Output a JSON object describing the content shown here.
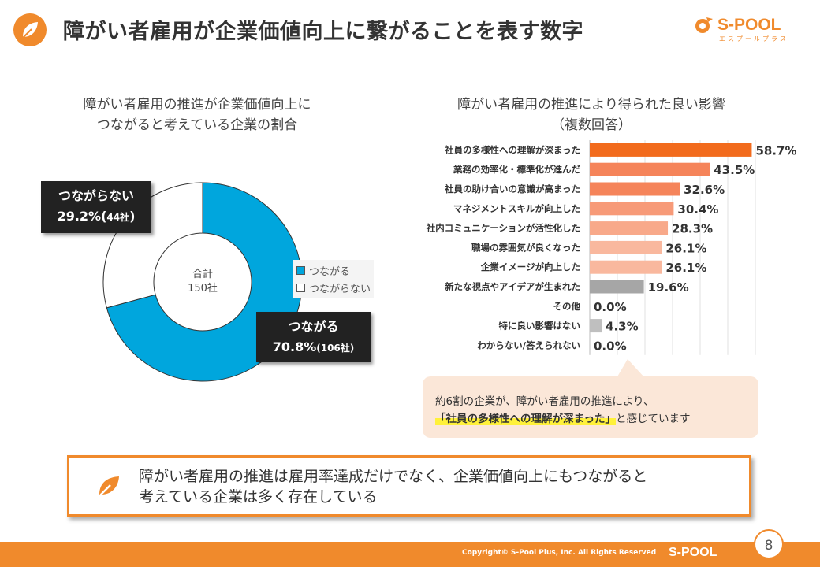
{
  "header": {
    "title": "障がい者雇用が企業価値向上に繋がることを表す数字",
    "logo_text": "S-POOL",
    "logo_sub": "エスプールプラス"
  },
  "left_chart": {
    "title_line1": "障がい者雇用の推進が企業価値向上に",
    "title_line2": "つながると考えている企業の割合",
    "center_label_line1": "合計",
    "center_label_line2": "150社",
    "callout_no": {
      "label": "つながらない",
      "value": "29.2%(",
      "count": "44社",
      "close": ")"
    },
    "callout_yes": {
      "label": "つながる",
      "value": "70.8%",
      "count": "(106社)"
    },
    "legend": [
      "つながる",
      "つながらない"
    ]
  },
  "right_chart": {
    "title_line1": "障がい者雇用の推進により得られた良い影響",
    "title_line2": "（複数回答）"
  },
  "chart_data": [
    {
      "type": "pie",
      "categories": [
        "つながる",
        "つながらない"
      ],
      "values": [
        70.8,
        29.2
      ],
      "counts": [
        106,
        44
      ],
      "colors": [
        "#00a6dd",
        "#ffffff"
      ]
    },
    {
      "type": "bar",
      "orientation": "horizontal",
      "categories": [
        "社員の多様性への理解が深まった",
        "業務の効率化・標準化が進んだ",
        "社員の助け合いの意識が高まった",
        "マネジメントスキルが向上した",
        "社内コミュニケーションが活性化した",
        "職場の雰囲気が良くなった",
        "企業イメージが向上した",
        "新たな視点やアイデアが生まれた",
        "その他",
        "特に良い影響はない",
        "わからない/答えられない"
      ],
      "values": [
        58.7,
        43.5,
        32.6,
        30.4,
        28.3,
        26.1,
        26.1,
        19.6,
        0.0,
        4.3,
        0.0
      ],
      "value_labels": [
        "58.7%",
        "43.5%",
        "32.6%",
        "30.4%",
        "28.3%",
        "26.1%",
        "26.1%",
        "19.6%",
        "0.0%",
        "4.3%",
        "0.0%"
      ],
      "colors": [
        "#f26b1d",
        "#f5845a",
        "#f5845a",
        "#f79a78",
        "#f8a98a",
        "#f9b89e",
        "#f9b89e",
        "#a6a6a6",
        "#a6a6a6",
        "#bfbfbf",
        "#bfbfbf"
      ],
      "xlim": [
        0,
        60
      ],
      "grid": true
    }
  ],
  "note": {
    "line1": "約6割の企業が、障がい者雇用の推進により、",
    "highlight": "「社員の多様性への理解が深まった」",
    "line2_rest": "と感じています"
  },
  "conclusion": {
    "line1": "障がい者雇用の推進は雇用率達成だけでなく、企業価値向上にもつながると",
    "line2": "考えている企業は多く存在している"
  },
  "footer": {
    "copyright": "Copyright© S-Pool Plus, Inc. All Rights Reserved",
    "logo_text": "S-POOL",
    "page": "8"
  },
  "colors": {
    "accent": "#f08a2c",
    "donut_yes": "#00a6dd"
  }
}
